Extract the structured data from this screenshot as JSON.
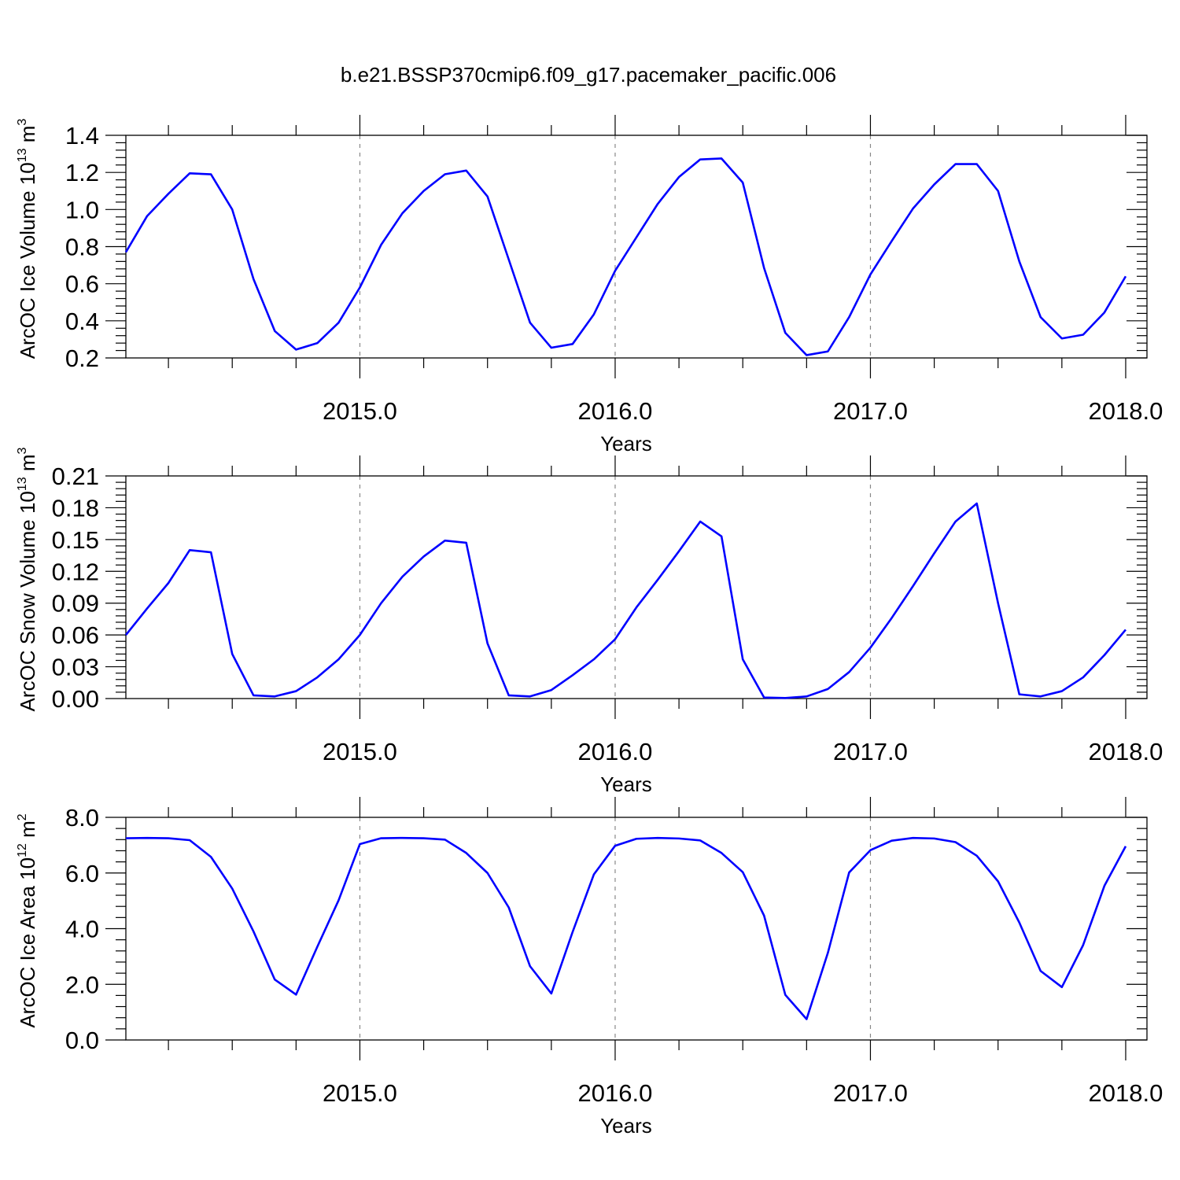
{
  "title": "b.e21.BSSP370cmip6.f09_g17.pacemaker_pacific.006",
  "colors": {
    "series": "#0000ff",
    "axis": "#000000",
    "grid": "#888888"
  },
  "chart_data": [
    {
      "type": "line",
      "ylabel": {
        "main": "ArcOC Ice Volume 10",
        "exp1": "13",
        "unit": " m",
        "exp2": "3"
      },
      "xlabel": "Years",
      "xlim": [
        2014.0833,
        2018.0833
      ],
      "ylim": [
        0.2,
        1.4
      ],
      "y_ticks": [
        "0.2",
        "0.4",
        "0.6",
        "0.8",
        "1.0",
        "1.2",
        "1.4"
      ],
      "x_ticks": [
        "2015.0",
        "2016.0",
        "2017.0",
        "2018.0"
      ],
      "grid": "dashed vertical at years",
      "series": [
        {
          "x_start": 2014.0833,
          "x_step": 0.0833333,
          "values": [
            0.77,
            0.965,
            1.085,
            1.195,
            1.19,
            1.0,
            0.625,
            0.345,
            0.245,
            0.28,
            0.39,
            0.58,
            0.81,
            0.98,
            1.1,
            1.19,
            1.21,
            1.07,
            0.73,
            0.39,
            0.255,
            0.275,
            0.435,
            0.67,
            0.85,
            1.03,
            1.175,
            1.27,
            1.275,
            1.145,
            0.685,
            0.335,
            0.215,
            0.235,
            0.42,
            0.65,
            0.83,
            1.005,
            1.135,
            1.245,
            1.245,
            1.1,
            0.72,
            0.42,
            0.305,
            0.325,
            0.445,
            0.64
          ]
        }
      ]
    },
    {
      "type": "line",
      "ylabel": {
        "main": "ArcOC Snow Volume 10",
        "exp1": "13",
        "unit": " m",
        "exp2": "3"
      },
      "xlabel": "Years",
      "xlim": [
        2014.0833,
        2018.0833
      ],
      "ylim": [
        0.0,
        0.21
      ],
      "y_ticks": [
        "0.00",
        "0.03",
        "0.06",
        "0.09",
        "0.12",
        "0.15",
        "0.18",
        "0.21"
      ],
      "x_ticks": [
        "2015.0",
        "2016.0",
        "2017.0",
        "2018.0"
      ],
      "grid": "dashed vertical at years",
      "series": [
        {
          "x_start": 2014.0833,
          "x_step": 0.0833333,
          "values": [
            0.06,
            0.085,
            0.109,
            0.14,
            0.138,
            0.042,
            0.003,
            0.002,
            0.007,
            0.02,
            0.037,
            0.06,
            0.09,
            0.115,
            0.134,
            0.149,
            0.147,
            0.052,
            0.003,
            0.002,
            0.008,
            0.022,
            0.037,
            0.056,
            0.086,
            0.112,
            0.139,
            0.167,
            0.153,
            0.037,
            0.001,
            0.0005,
            0.002,
            0.009,
            0.025,
            0.048,
            0.076,
            0.106,
            0.137,
            0.167,
            0.184,
            0.09,
            0.004,
            0.002,
            0.007,
            0.02,
            0.041,
            0.065
          ]
        }
      ]
    },
    {
      "type": "line",
      "ylabel": {
        "main": "ArcOC Ice Area 10",
        "exp1": "12",
        "unit": " m",
        "exp2": "2"
      },
      "xlabel": "Years",
      "xlim": [
        2014.0833,
        2018.0833
      ],
      "ylim": [
        0.0,
        8.0
      ],
      "y_ticks": [
        "0.0",
        "2.0",
        "4.0",
        "6.0",
        "8.0"
      ],
      "x_ticks": [
        "2015.0",
        "2016.0",
        "2017.0",
        "2018.0"
      ],
      "grid": "dashed vertical at years",
      "series": [
        {
          "x_start": 2014.0833,
          "x_step": 0.0833333,
          "values": [
            7.25,
            7.26,
            7.25,
            7.18,
            6.58,
            5.44,
            3.9,
            2.17,
            1.63,
            3.35,
            5.02,
            7.04,
            7.25,
            7.26,
            7.25,
            7.2,
            6.72,
            6.0,
            4.76,
            2.65,
            1.67,
            3.88,
            5.95,
            6.98,
            7.23,
            7.26,
            7.24,
            7.17,
            6.72,
            6.03,
            4.47,
            1.62,
            0.75,
            3.13,
            6.02,
            6.82,
            7.16,
            7.26,
            7.24,
            7.11,
            6.62,
            5.7,
            4.22,
            2.48,
            1.9,
            3.41,
            5.54,
            6.96
          ]
        }
      ]
    }
  ]
}
